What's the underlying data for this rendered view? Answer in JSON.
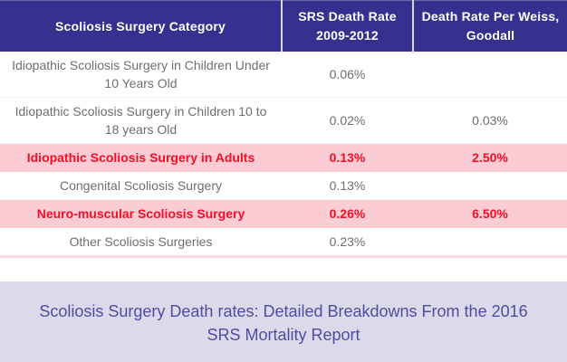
{
  "table": {
    "columns": [
      "Scoliosis Surgery Category",
      "SRS Death Rate 2009-2012",
      "Death Rate Per Weiss, Goodall"
    ],
    "rows": [
      {
        "category": "Idiopathic Scoliosis Surgery in Children Under 10 Years Old",
        "srs_rate": "0.06%",
        "weiss_goodall_rate": "",
        "highlighted": false
      },
      {
        "category": "Idiopathic Scoliosis Surgery in Children 10 to 18 years Old",
        "srs_rate": "0.02%",
        "weiss_goodall_rate": "0.03%",
        "highlighted": false
      },
      {
        "category": "Idiopathic Scoliosis Surgery in Adults",
        "srs_rate": "0.13%",
        "weiss_goodall_rate": "2.50%",
        "highlighted": true
      },
      {
        "category": "Congenital Scoliosis Surgery",
        "srs_rate": "0.13%",
        "weiss_goodall_rate": "",
        "highlighted": false
      },
      {
        "category": "Neuro-muscular Scoliosis Surgery",
        "srs_rate": "0.26%",
        "weiss_goodall_rate": "6.50%",
        "highlighted": true
      },
      {
        "category": "Other Scoliosis Surgeries",
        "srs_rate": "0.23%",
        "weiss_goodall_rate": "",
        "highlighted": false
      }
    ]
  },
  "caption": {
    "text": "Scoliosis Surgery Death rates: Detailed Breakdowns From the 2016 SRS Mortality Report"
  },
  "colors": {
    "header_bg": "#36318e",
    "header_text": "#ffffff",
    "highlight_row_bg": "#fbccd3",
    "highlight_row_text": "#f70d25",
    "body_text": "#6e6e6e",
    "table_bottom_rule": "#f9d8de",
    "caption_bg": "#dbd9ea",
    "caption_text": "#504da0"
  }
}
